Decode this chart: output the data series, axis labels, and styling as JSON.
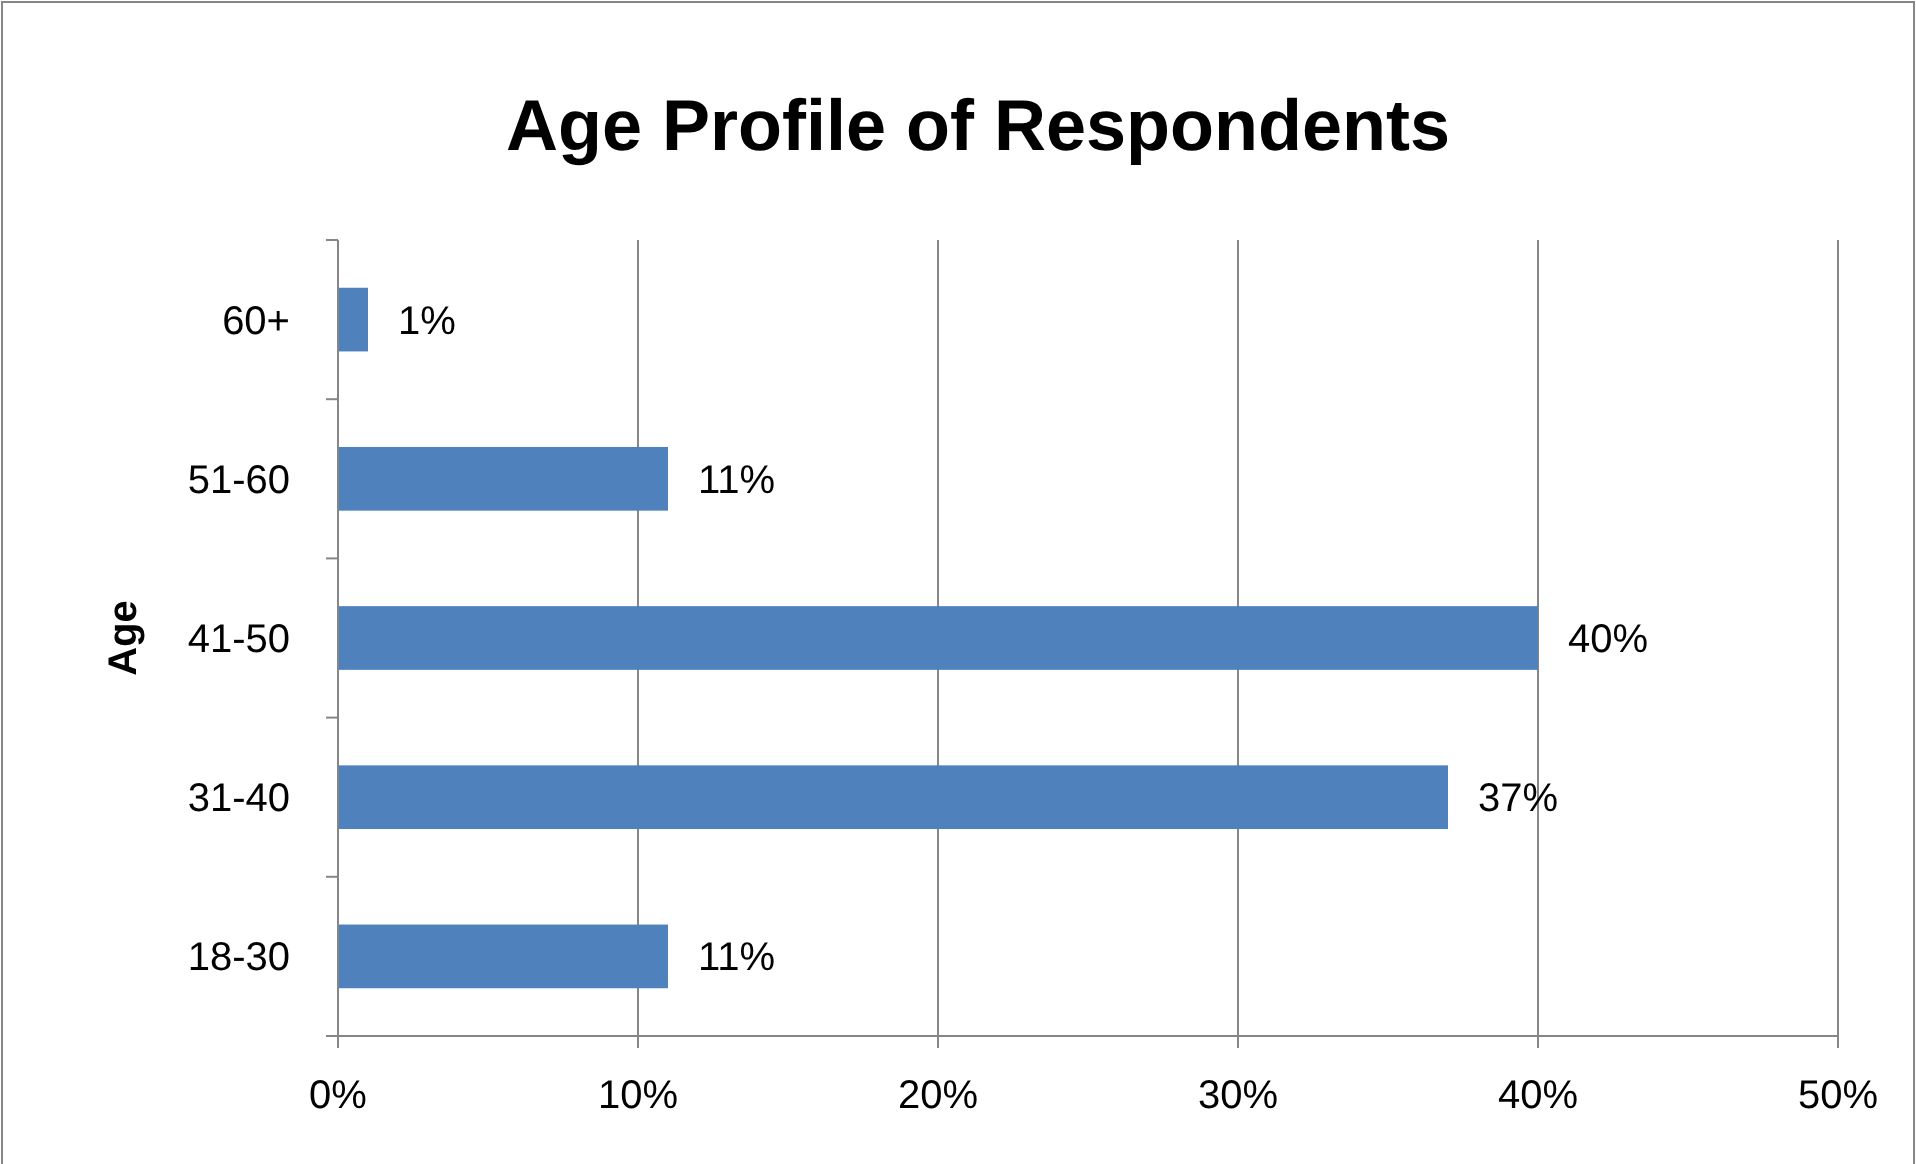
{
  "chart_data": {
    "type": "bar",
    "orientation": "horizontal",
    "title": "Age Profile of Respondents",
    "ylabel": "Age",
    "categories": [
      "60+",
      "51-60",
      "41-50",
      "31-40",
      "18-30"
    ],
    "values": [
      1,
      11,
      40,
      37,
      11
    ],
    "value_labels": [
      "1%",
      "11%",
      "40%",
      "37%",
      "11%"
    ],
    "color": "#4f81bd",
    "xlim": [
      0,
      50
    ],
    "xticks": [
      {
        "value": 0,
        "label": "0%"
      },
      {
        "value": 10,
        "label": "10%"
      },
      {
        "value": 20,
        "label": "20%"
      },
      {
        "value": 30,
        "label": "30%"
      },
      {
        "value": 40,
        "label": "40%"
      },
      {
        "value": 50,
        "label": "50%"
      }
    ],
    "grid": "x"
  }
}
